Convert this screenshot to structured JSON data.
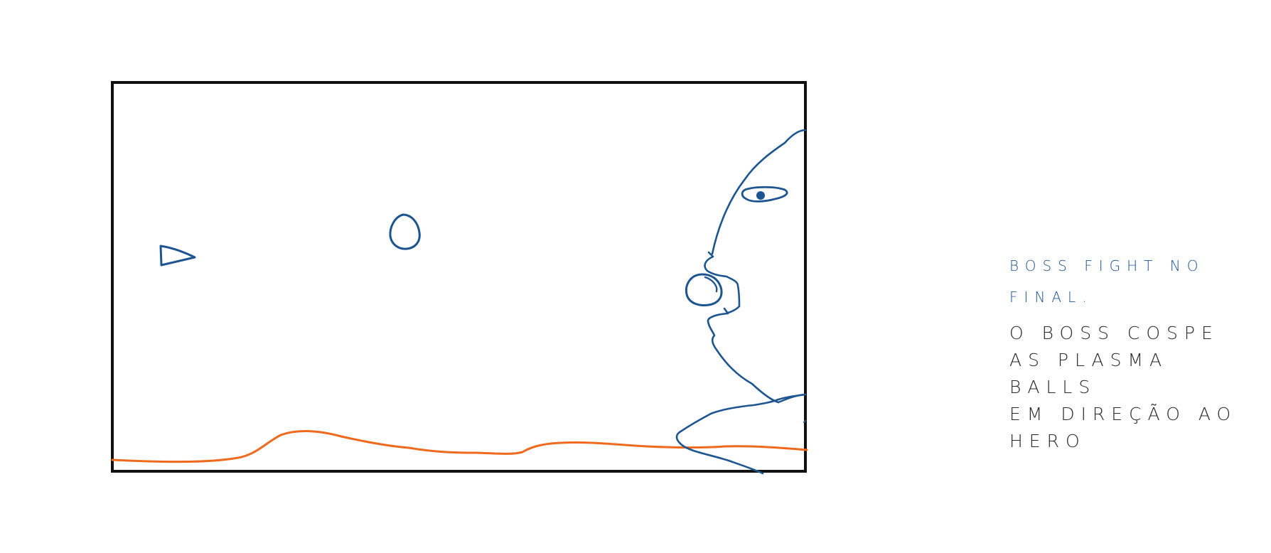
{
  "colors": {
    "frame": "#111111",
    "ground": "#ee6a1e",
    "boss": "#1c5590",
    "title_text": "#1c5590",
    "body_text": "#2a2a2a"
  },
  "icons": {
    "hero_ship": "triangle-outline",
    "plasma_ball": "circle-outline"
  },
  "notes": {
    "title": "BOSS FIGHT NO\nFINAL.",
    "body": "O BOSS COSPE\nAS PLASMA BALLS\nEM DIREÇÃO AO\nHERO"
  }
}
